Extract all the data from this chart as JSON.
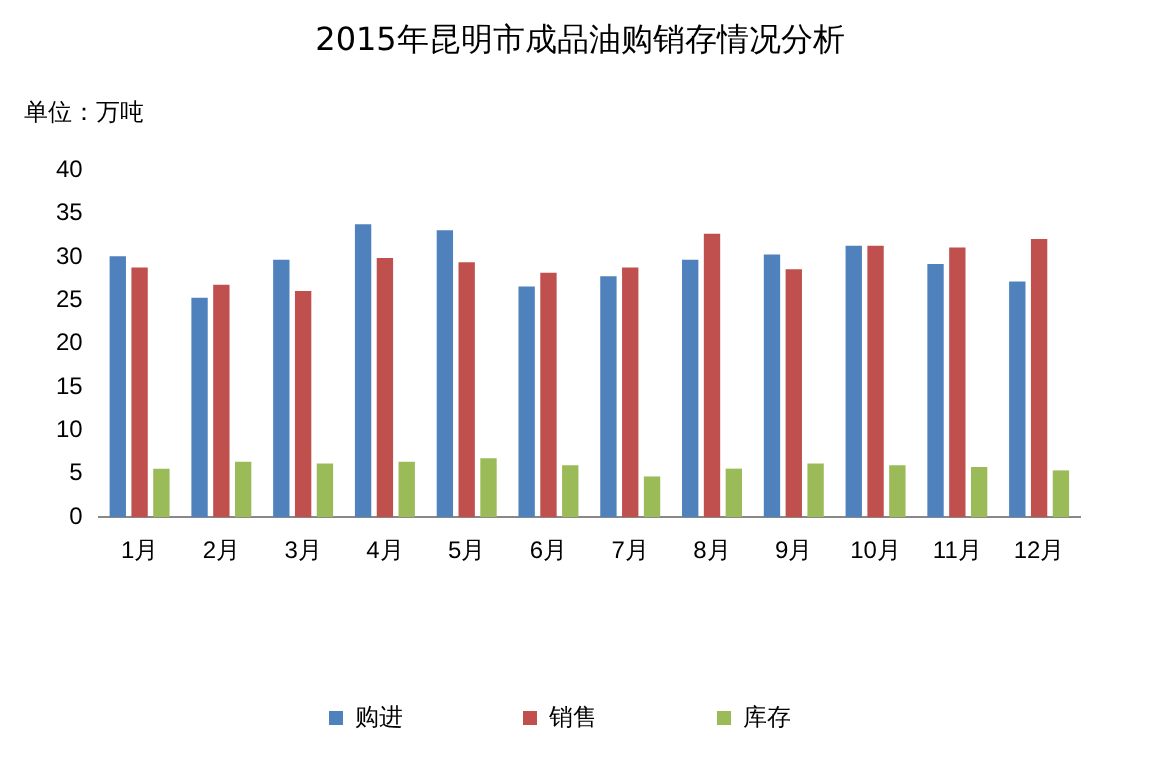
{
  "chart_data": {
    "type": "bar",
    "title": "2015年昆明市成品油购销存情况分析",
    "ylabel": "单位：万吨",
    "categories": [
      "1月",
      "2月",
      "3月",
      "4月",
      "5月",
      "6月",
      "7月",
      "8月",
      "9月",
      "10月",
      "11月",
      "12月"
    ],
    "series": [
      {
        "name": "购进",
        "color": "#4f81bd",
        "values": [
          30.1,
          25.3,
          29.7,
          33.8,
          33.1,
          26.6,
          27.8,
          29.7,
          30.3,
          31.3,
          29.2,
          27.2
        ]
      },
      {
        "name": "销售",
        "color": "#c0504d",
        "values": [
          28.8,
          26.8,
          26.1,
          29.9,
          29.4,
          28.2,
          28.8,
          32.7,
          28.6,
          31.3,
          31.1,
          32.1
        ]
      },
      {
        "name": "库存",
        "color": "#9bbb59",
        "values": [
          5.6,
          6.4,
          6.2,
          6.4,
          6.8,
          6.0,
          4.7,
          5.6,
          6.2,
          6.0,
          5.8,
          5.4
        ]
      }
    ],
    "ylim": [
      0,
      40
    ],
    "yticks": [
      0,
      5,
      10,
      15,
      20,
      25,
      30,
      35,
      40
    ],
    "grid": false,
    "legend": "bottom"
  }
}
